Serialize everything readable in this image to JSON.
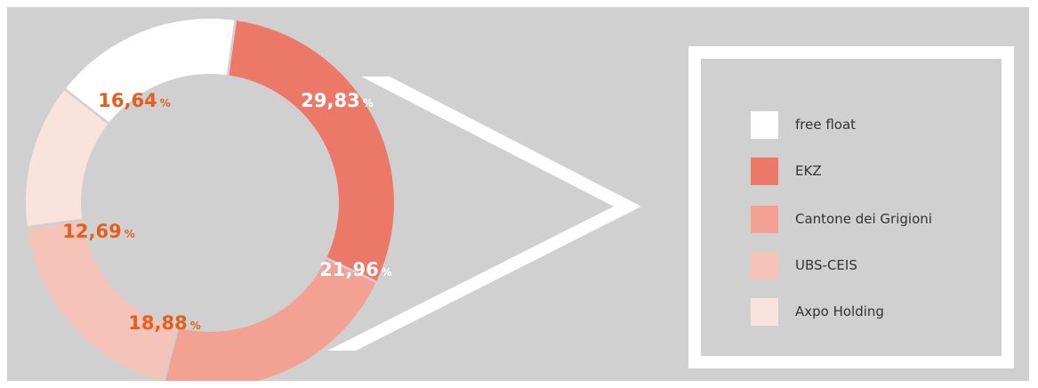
{
  "chart_data": {
    "type": "pie",
    "title": "",
    "slices": [
      {
        "label": "EKZ",
        "value": 29.83,
        "value_label": "29,83",
        "unit": "%",
        "color": "#ec7968",
        "label_color": "#ffffff"
      },
      {
        "label": "Cantone dei Grigioni",
        "value": 21.96,
        "value_label": "21,96",
        "unit": "%",
        "color": "#f2a193",
        "label_color": "#ffffff"
      },
      {
        "label": "UBS-CEIS",
        "value": 18.88,
        "value_label": "18,88",
        "unit": "%",
        "color": "#f6c3b9",
        "label_color": "#e35f1f"
      },
      {
        "label": "Axpo Holding",
        "value": 12.69,
        "value_label": "12,69",
        "unit": "%",
        "color": "#fbe3dd",
        "label_color": "#e35f1f"
      },
      {
        "label": "free float",
        "value": 16.64,
        "value_label": "16,64",
        "unit": "%",
        "color": "#ffffff",
        "label_color": "#e35f1f"
      }
    ],
    "legend": {
      "placement": "right",
      "items": [
        {
          "label": "free float",
          "color": "#ffffff"
        },
        {
          "label": "EKZ",
          "color": "#ec7968"
        },
        {
          "label": "Cantone dei Grigioni",
          "color": "#f2a193"
        },
        {
          "label": "UBS-CEIS",
          "color": "#f6c3b9"
        },
        {
          "label": "Axpo Holding",
          "color": "#fbe3dd"
        }
      ]
    },
    "background": "#d0d0d0"
  }
}
